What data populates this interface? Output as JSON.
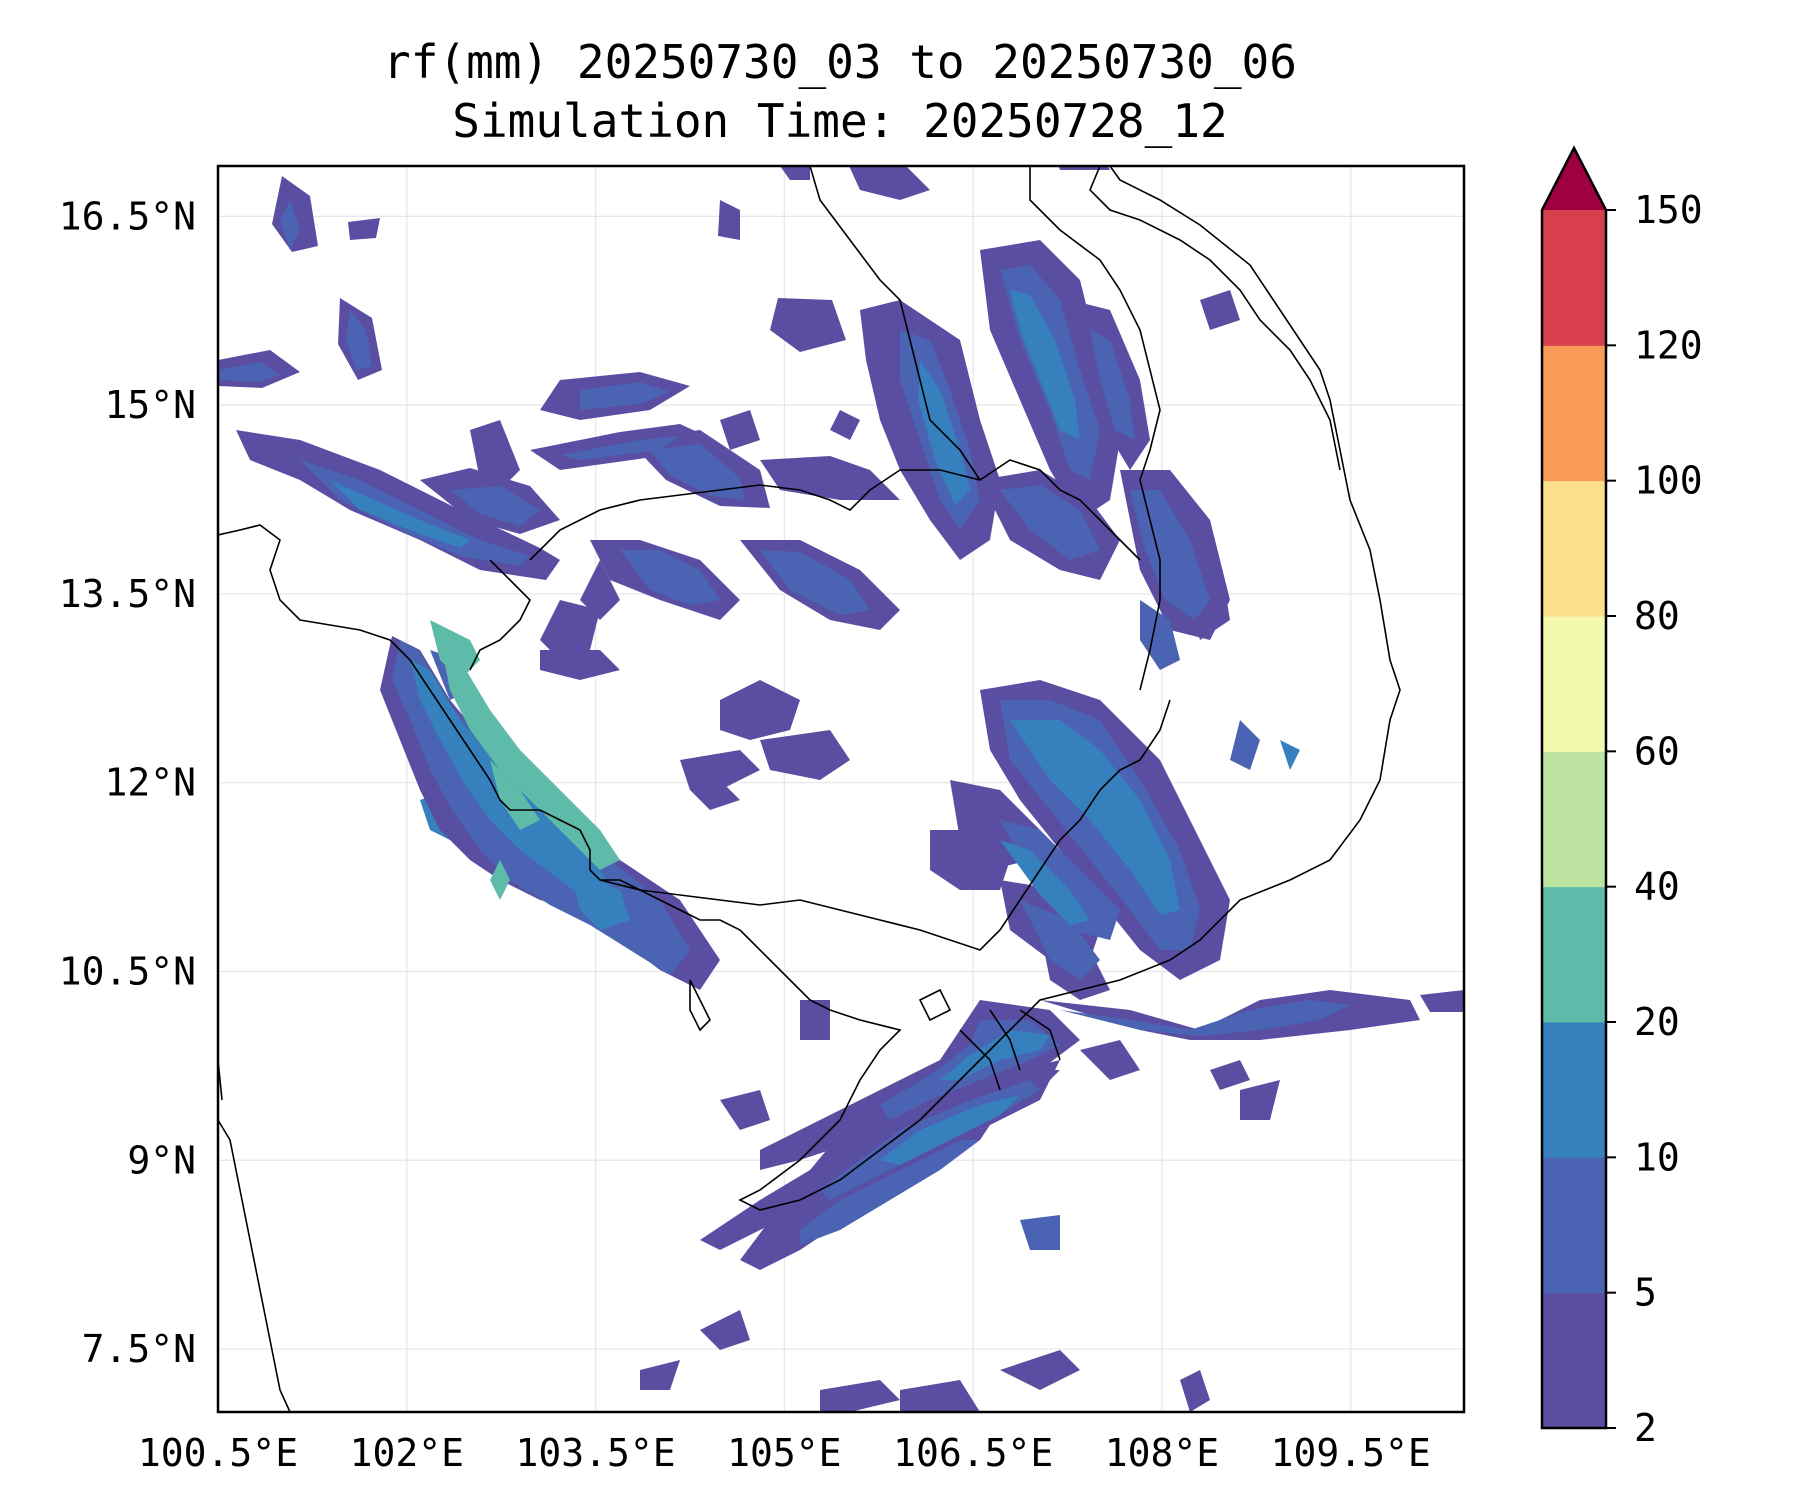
{
  "title": {
    "line1": "rf(mm) 20250730_03 to 20250730_06",
    "line2": "Simulation Time: 20250728_12"
  },
  "map": {
    "lon_ticks": [
      "100.5°E",
      "102°E",
      "103.5°E",
      "105°E",
      "106.5°E",
      "108°E",
      "109.5°E"
    ],
    "lat_ticks": [
      "16.5°N",
      "15°N",
      "13.5°N",
      "12°N",
      "10.5°N",
      "9°N",
      "7.5°N"
    ],
    "lon_range": [
      100.5,
      110.4
    ],
    "lat_range": [
      7.0,
      16.9
    ],
    "gridlines": true,
    "coastlines": true,
    "borders": true
  },
  "colorbar": {
    "levels": [
      "2",
      "5",
      "10",
      "20",
      "40",
      "60",
      "80",
      "100",
      "120",
      "150"
    ],
    "colors": [
      "#5a4ea3",
      "#4a63b2",
      "#3580bd",
      "#5fbba9",
      "#bde4a0",
      "#f3f9af",
      "#fcde8c",
      "#f89a58",
      "#d73f4f"
    ],
    "extend_color": "#9e0142",
    "extend": "max",
    "placement": "right"
  }
}
